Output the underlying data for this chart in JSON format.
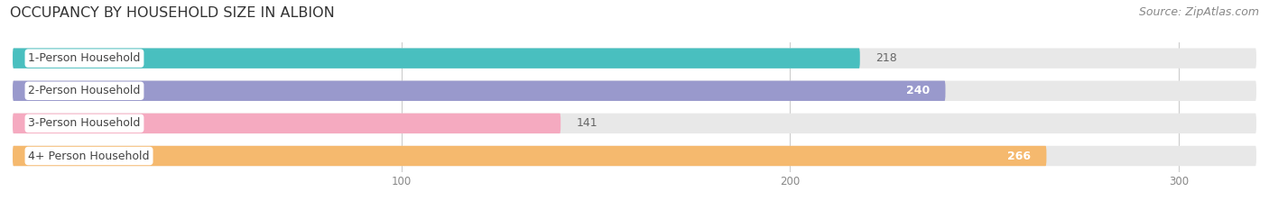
{
  "title": "OCCUPANCY BY HOUSEHOLD SIZE IN ALBION",
  "source": "Source: ZipAtlas.com",
  "categories": [
    "1-Person Household",
    "2-Person Household",
    "3-Person Household",
    "4+ Person Household"
  ],
  "values": [
    218,
    240,
    141,
    266
  ],
  "bar_colors": [
    "#49bfbf",
    "#9999cc",
    "#f5aac0",
    "#f5b96e"
  ],
  "value_inside": [
    false,
    true,
    false,
    true
  ],
  "xlim_max": 320,
  "xticks": [
    100,
    200,
    300
  ],
  "background_color": "#ffffff",
  "bar_bg_color": "#e8e8e8",
  "title_fontsize": 11.5,
  "source_fontsize": 9,
  "cat_fontsize": 9,
  "val_fontsize": 9,
  "bar_height": 0.62,
  "figsize": [
    14.06,
    2.33
  ],
  "dpi": 100
}
